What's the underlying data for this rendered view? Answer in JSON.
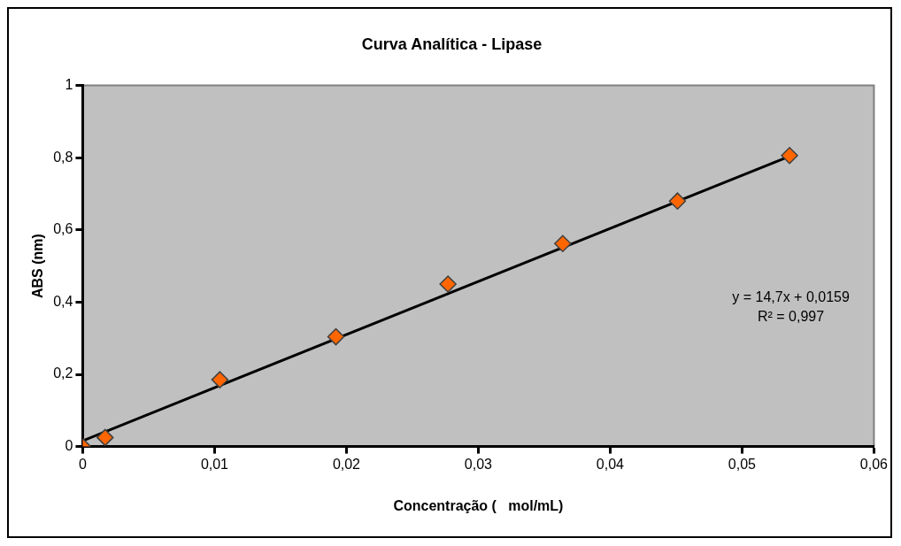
{
  "chart_data": {
    "type": "scatter",
    "title": "Curva Analítica - Lipase",
    "xlabel": "Concentração (   mol/mL)",
    "ylabel": "ABS (nm)",
    "x": [
      0,
      0.0017,
      0.0104,
      0.0192,
      0.0277,
      0.0364,
      0.0451,
      0.0536
    ],
    "series": [
      {
        "color": "#ff6600",
        "values": [
          0,
          0.025,
          0.185,
          0.304,
          0.45,
          0.562,
          0.68,
          0.806
        ]
      },
      {
        "type": "line",
        "marker": "none",
        "color": "#000000",
        "x": [
          0,
          0.0536
        ],
        "values": [
          0.016,
          0.804
        ]
      }
    ],
    "xlim": [
      0,
      0.06
    ],
    "xticks": [
      {
        "value": 0,
        "label": "0"
      },
      {
        "value": 0.01,
        "label": "0,01"
      },
      {
        "value": 0.02,
        "label": "0,02"
      },
      {
        "value": 0.03,
        "label": "0,03"
      },
      {
        "value": 0.04,
        "label": "0,04"
      },
      {
        "value": 0.05,
        "label": "0,05"
      },
      {
        "value": 0.06,
        "label": "0,06"
      }
    ],
    "ylim": [
      0,
      1
    ],
    "yticks": [
      {
        "value": 0,
        "label": "0"
      },
      {
        "value": 0.2,
        "label": "0,2"
      },
      {
        "value": 0.4,
        "label": "0,4"
      },
      {
        "value": 0.6,
        "label": "0,6"
      },
      {
        "value": 0.8,
        "label": "0,8"
      },
      {
        "value": 1,
        "label": "1"
      }
    ],
    "annotations": [
      "y = 14,7x + 0,0159",
      "R² = 0,997"
    ],
    "marker": "diamond",
    "grid": false,
    "legend": false
  }
}
